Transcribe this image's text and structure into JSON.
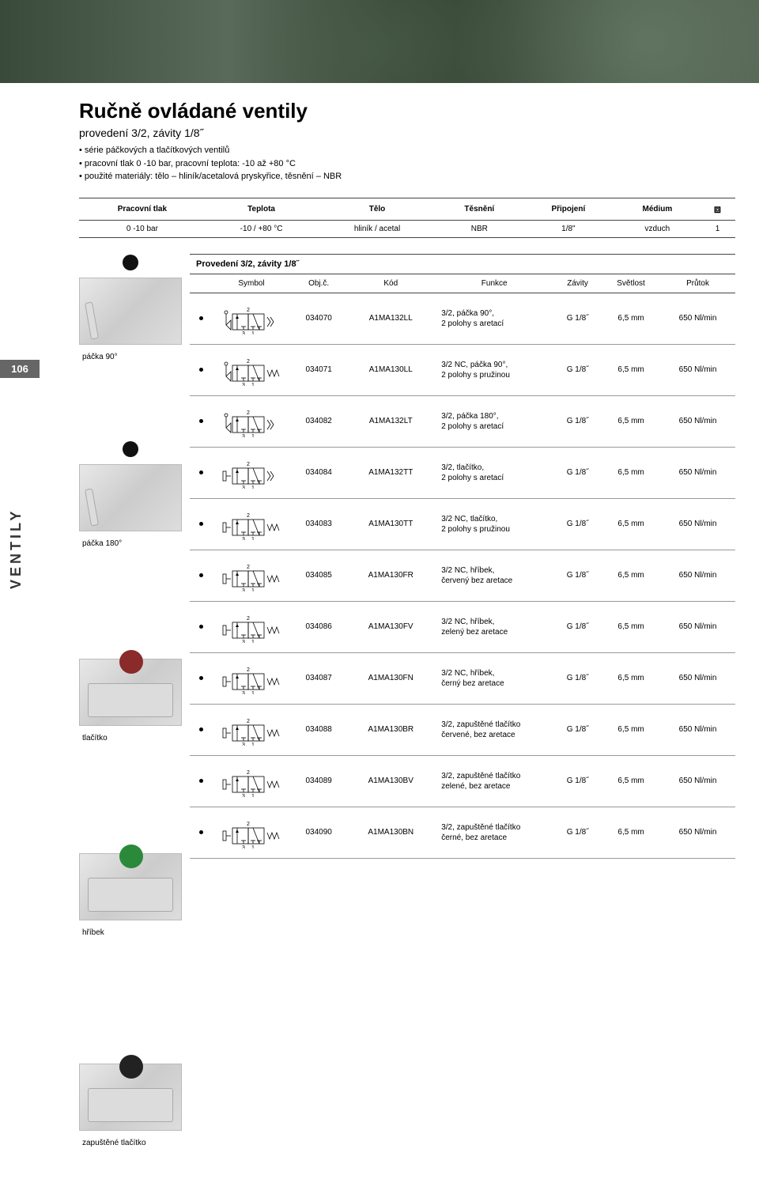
{
  "page_number": "106",
  "side_label": "VENTILY",
  "title": "Ručně ovládané ventily",
  "subtitle": "provedení 3/2, závity 1/8˝",
  "bullets": [
    "série páčkových a tlačítkových ventilů",
    "pracovní tlak 0 -10 bar, pracovní teplota: -10 až +80 °C",
    "použité materiály: tělo – hliník/acetalová pryskyřice, těsnění – NBR"
  ],
  "spec_table": {
    "headers": [
      "Pracovní tlak",
      "Teplota",
      "Tělo",
      "Těsnění",
      "Připojení",
      "Médium",
      "cube"
    ],
    "row": [
      "0 -10 bar",
      "-10 / +80 °C",
      "hliník / acetal",
      "NBR",
      "1/8\"",
      "vzduch",
      "1"
    ]
  },
  "section_title": "Provedení 3/2, závity 1/8˝",
  "main_headers": [
    "",
    "Symbol",
    "Obj.č.",
    "Kód",
    "Funkce",
    "Závity",
    "Světlost",
    "Průtok"
  ],
  "left_images": [
    {
      "caption": "páčka 90°",
      "cls": "lever body"
    },
    {
      "caption": "páčka 180°",
      "cls": "lever body"
    },
    {
      "caption": "tlačítko",
      "cls": "btn red body"
    },
    {
      "caption": "hříbek",
      "cls": "btn green body"
    },
    {
      "caption": "zapuštěné tlačítko",
      "cls": "btn black body"
    }
  ],
  "rows": [
    {
      "obj": "034070",
      "kod": "A1MA132LL",
      "funkce": "3/2, páčka 90°,\n2 polohy s aretací",
      "zav": "G 1/8˝",
      "sv": "6,5 mm",
      "pr": "650 Nl/min",
      "sym": "lever_detent"
    },
    {
      "obj": "034071",
      "kod": "A1MA130LL",
      "funkce": "3/2 NC, páčka 90°,\n2 polohy s pružinou",
      "zav": "G 1/8˝",
      "sv": "6,5 mm",
      "pr": "650 Nl/min",
      "sym": "lever_spring"
    },
    {
      "obj": "034082",
      "kod": "A1MA132LT",
      "funkce": "3/2, páčka 180°,\n2 polohy s aretací",
      "zav": "G 1/8˝",
      "sv": "6,5 mm",
      "pr": "650 Nl/min",
      "sym": "lever_detent"
    },
    {
      "obj": "034084",
      "kod": "A1MA132TT",
      "funkce": "3/2, tlačítko,\n2 polohy s aretací",
      "zav": "G 1/8˝",
      "sv": "6,5 mm",
      "pr": "650 Nl/min",
      "sym": "push_detent"
    },
    {
      "obj": "034083",
      "kod": "A1MA130TT",
      "funkce": "3/2 NC, tlačítko,\n2 polohy s pružinou",
      "zav": "G 1/8˝",
      "sv": "6,5 mm",
      "pr": "650 Nl/min",
      "sym": "push_spring"
    },
    {
      "obj": "034085",
      "kod": "A1MA130FR",
      "funkce": "3/2 NC, hříbek,\nčervený bez aretace",
      "zav": "G 1/8˝",
      "sv": "6,5 mm",
      "pr": "650 Nl/min",
      "sym": "push_spring"
    },
    {
      "obj": "034086",
      "kod": "A1MA130FV",
      "funkce": "3/2 NC, hříbek,\nzelený bez aretace",
      "zav": "G 1/8˝",
      "sv": "6,5 mm",
      "pr": "650 Nl/min",
      "sym": "push_spring"
    },
    {
      "obj": "034087",
      "kod": "A1MA130FN",
      "funkce": "3/2 NC, hříbek,\nčerný bez aretace",
      "zav": "G 1/8˝",
      "sv": "6,5 mm",
      "pr": "650 Nl/min",
      "sym": "push_spring"
    },
    {
      "obj": "034088",
      "kod": "A1MA130BR",
      "funkce": "3/2, zapuštěné tlačítko\nčervené, bez aretace",
      "zav": "G 1/8˝",
      "sv": "6,5 mm",
      "pr": "650 Nl/min",
      "sym": "push_spring"
    },
    {
      "obj": "034089",
      "kod": "A1MA130BV",
      "funkce": "3/2, zapuštěné tlačítko\nzelené, bez aretace",
      "zav": "G 1/8˝",
      "sv": "6,5 mm",
      "pr": "650 Nl/min",
      "sym": "push_spring"
    },
    {
      "obj": "034090",
      "kod": "A1MA130BN",
      "funkce": "3/2, zapuštěné tlačítko\nčerné, bez aretace",
      "zav": "G 1/8˝",
      "sv": "6,5 mm",
      "pr": "650 Nl/min",
      "sym": "push_spring"
    }
  ],
  "colors": {
    "border": "#444",
    "row_border": "#999",
    "side_tab_bg": "#666666",
    "text": "#000000"
  },
  "symbol_style": {
    "width": 80,
    "height": 40,
    "stroke": "#000",
    "stroke_width": 0.8,
    "port_labels": [
      "2",
      "3",
      "1"
    ]
  }
}
